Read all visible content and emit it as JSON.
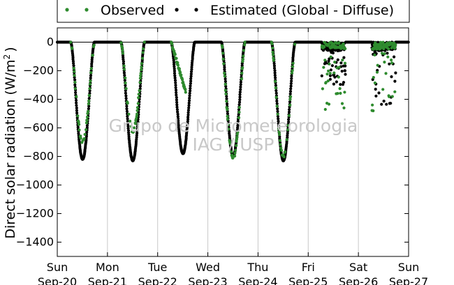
{
  "chart_data": {
    "type": "scatter",
    "title": "",
    "xlabel": "",
    "ylabel": "Direct solar radiation (W/m²)",
    "ylabel_parts": {
      "main": "Direct solar radiation (W/m",
      "sup": "2",
      "close": ")"
    },
    "ylim": [
      -1500,
      100
    ],
    "yticks": [
      0,
      -200,
      -400,
      -600,
      -800,
      -1000,
      -1200,
      -1400
    ],
    "xlim": [
      0,
      7
    ],
    "xticks": [
      {
        "x": 0,
        "day": "Sun",
        "date": "Sep-20"
      },
      {
        "x": 1,
        "day": "Mon",
        "date": "Sep-21"
      },
      {
        "x": 2,
        "day": "Tue",
        "date": "Sep-22"
      },
      {
        "x": 3,
        "day": "Wed",
        "date": "Sep-23"
      },
      {
        "x": 4,
        "day": "Thu",
        "date": "Sep-24"
      },
      {
        "x": 5,
        "day": "Fri",
        "date": "Sep-25"
      },
      {
        "x": 6,
        "day": "Sat",
        "date": "Sep-26"
      },
      {
        "x": 7,
        "day": "Sun",
        "date": "Sep-27"
      }
    ],
    "grid": "vertical",
    "legend": "top",
    "series": [
      {
        "name": "Observed",
        "color": "#2e8b2e"
      },
      {
        "name": "Estimated (Global - Diffuse)",
        "color": "#000000"
      }
    ],
    "daily_minima": {
      "Estimated (Global - Diffuse)": [
        {
          "date": "Sep-20",
          "min": -820
        },
        {
          "date": "Sep-21",
          "min": -830
        },
        {
          "date": "Sep-22",
          "min": -780
        },
        {
          "date": "Sep-23",
          "min": -800
        },
        {
          "date": "Sep-24",
          "min": -830
        },
        {
          "date": "Sep-25",
          "min": -340
        },
        {
          "date": "Sep-26",
          "min": -490
        }
      ],
      "Observed": [
        {
          "date": "Sep-20",
          "min": -700
        },
        {
          "date": "Sep-21",
          "min": -620
        },
        {
          "date": "Sep-22",
          "min": -350
        },
        {
          "date": "Sep-23",
          "min": -810
        },
        {
          "date": "Sep-24",
          "min": -800
        },
        {
          "date": "Sep-25",
          "min": -500
        },
        {
          "date": "Sep-26",
          "min": -490
        }
      ]
    },
    "watermark": [
      "Grupo de Micrometeorologia",
      "IAG / USP"
    ]
  }
}
